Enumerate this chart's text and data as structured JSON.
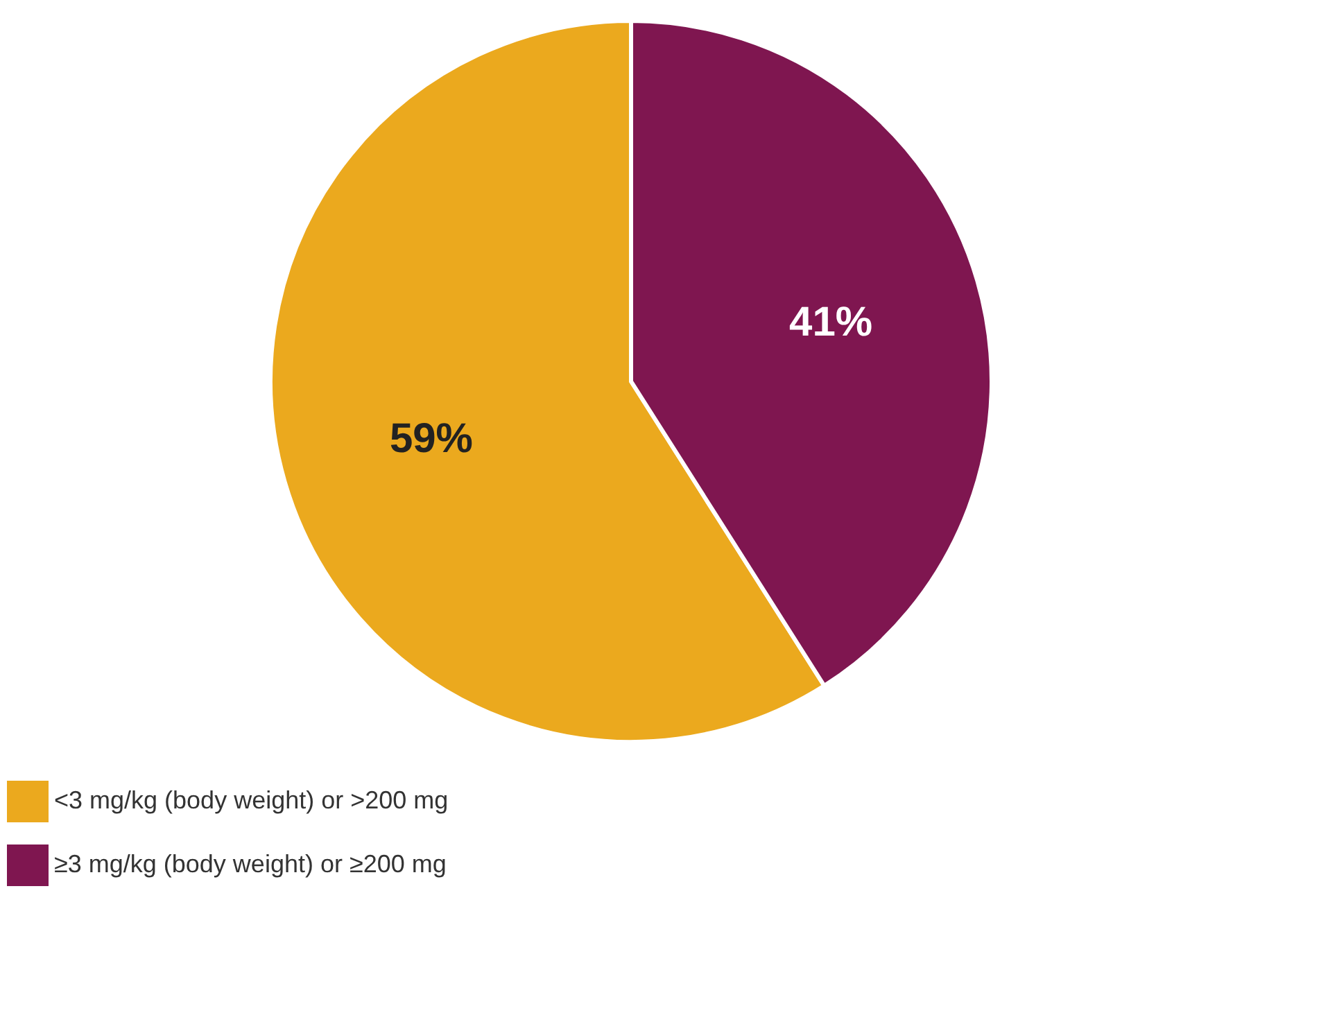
{
  "chart_data": {
    "type": "pie",
    "categories": [
      "<3 mg/kg (body weight) or >200 mg",
      "≥3 mg/kg (body weight) or ≥200 mg"
    ],
    "values": [
      59,
      41
    ],
    "colors": [
      "#eba91e",
      "#7f1650"
    ],
    "value_labels": [
      "59%",
      "41%"
    ],
    "legend": "bottom"
  }
}
